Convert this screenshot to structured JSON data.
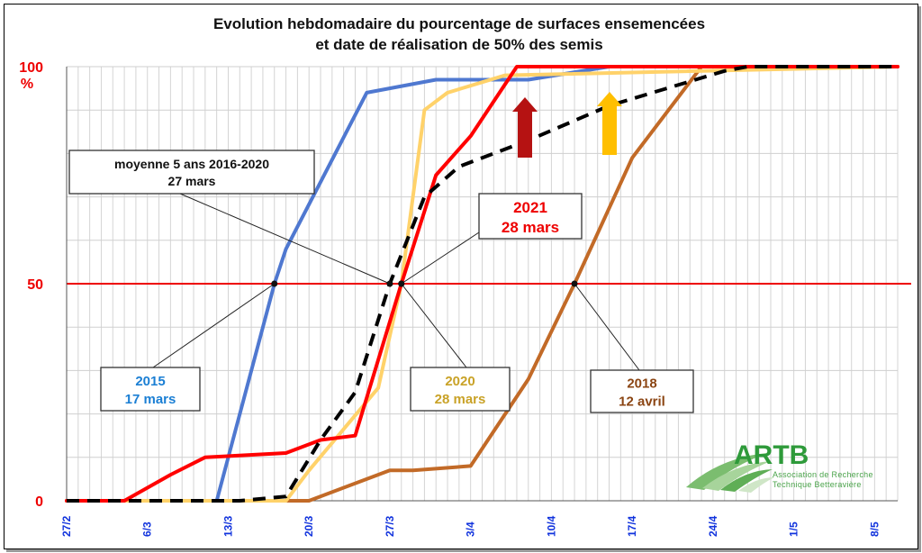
{
  "chart_data": {
    "type": "line",
    "title": "Evolution hebdomadaire du pourcentage de surfaces ensemencées",
    "subtitle": "et date de réalisation de 50% des semis",
    "ylabel": "%",
    "ylim": [
      0,
      100
    ],
    "yticks": [
      "0",
      "50",
      "100"
    ],
    "xlim": [
      "2/27",
      "5/10"
    ],
    "xtick_labels": [
      "27/2",
      "6/3",
      "13/3",
      "20/3",
      "27/3",
      "3/4",
      "10/4",
      "17/4",
      "24/4",
      "1/5",
      "8/5"
    ],
    "grid": true,
    "reference_line": {
      "y": 50,
      "color": "#ee0000"
    },
    "series": [
      {
        "name": "2015",
        "color": "#4f78d0",
        "dash": false,
        "points": [
          [
            "2/27",
            0
          ],
          [
            "3/12",
            0
          ],
          [
            "3/17",
            50
          ],
          [
            "3/18",
            58
          ],
          [
            "3/25",
            94
          ],
          [
            "3/31",
            97
          ],
          [
            "4/3",
            97
          ],
          [
            "4/8",
            97
          ],
          [
            "4/15",
            100
          ],
          [
            "5/10",
            100
          ]
        ]
      },
      {
        "name": "2018",
        "color": "#c26a27",
        "dash": false,
        "points": [
          [
            "2/27",
            0
          ],
          [
            "3/20",
            0
          ],
          [
            "3/25",
            5
          ],
          [
            "3/27",
            7
          ],
          [
            "3/29",
            7
          ],
          [
            "4/3",
            8
          ],
          [
            "4/8",
            28
          ],
          [
            "4/12",
            50
          ],
          [
            "4/17",
            79
          ],
          [
            "4/23",
            100
          ],
          [
            "5/10",
            100
          ]
        ]
      },
      {
        "name": "2020",
        "color": "#ffd26a",
        "dash": false,
        "points": [
          [
            "2/27",
            0
          ],
          [
            "3/18",
            0
          ],
          [
            "3/20",
            7
          ],
          [
            "3/26",
            26
          ],
          [
            "3/28",
            50
          ],
          [
            "3/30",
            90
          ],
          [
            "4/1",
            94
          ],
          [
            "4/6",
            98
          ],
          [
            "5/10",
            100
          ]
        ]
      },
      {
        "name": "2021",
        "color": "#ff0000",
        "dash": false,
        "points": [
          [
            "2/27",
            0
          ],
          [
            "3/4",
            0
          ],
          [
            "3/8",
            6
          ],
          [
            "3/11",
            10
          ],
          [
            "3/18",
            11
          ],
          [
            "3/21",
            14
          ],
          [
            "3/24",
            15
          ],
          [
            "3/28",
            50
          ],
          [
            "3/31",
            75
          ],
          [
            "4/3",
            84
          ],
          [
            "4/7",
            100
          ],
          [
            "5/10",
            100
          ]
        ]
      },
      {
        "name": "moyenne 5 ans 2016-2020",
        "color": "#000000",
        "dash": true,
        "points": [
          [
            "2/27",
            0
          ],
          [
            "3/14",
            0
          ],
          [
            "3/18",
            1
          ],
          [
            "3/21",
            14
          ],
          [
            "3/24",
            25
          ],
          [
            "3/27",
            50
          ],
          [
            "3/30",
            70
          ],
          [
            "4/2",
            77
          ],
          [
            "4/8",
            83
          ],
          [
            "4/15",
            91
          ],
          [
            "4/20",
            95
          ],
          [
            "4/25",
            99
          ],
          [
            "4/27",
            100
          ],
          [
            "5/10",
            100
          ]
        ]
      }
    ],
    "annotations": [
      {
        "label": "moyenne 5 ans 2016-2020",
        "date": "27 mars",
        "color": "#111111",
        "target": [
          "3/27",
          50
        ]
      },
      {
        "label": "2021",
        "date": "28 mars",
        "color": "#ee0000",
        "target": [
          "3/28",
          50
        ]
      },
      {
        "label": "2015",
        "date": "17 mars",
        "color": "#1b7fd4",
        "target": [
          "3/17",
          50
        ]
      },
      {
        "label": "2020",
        "date": "28 mars",
        "color": "#c9a227",
        "target": [
          "3/28",
          50
        ]
      },
      {
        "label": "2018",
        "date": "12 avril",
        "color": "#8b4513",
        "target": [
          "4/12",
          50
        ]
      }
    ],
    "arrows": [
      {
        "color": "#b51212",
        "near": "2021"
      },
      {
        "color": "#ffbf00",
        "near": "2020"
      }
    ]
  },
  "logo": {
    "name": "ARTB",
    "line1": "Association de Recherche",
    "line2": "Technique Betteravière"
  }
}
